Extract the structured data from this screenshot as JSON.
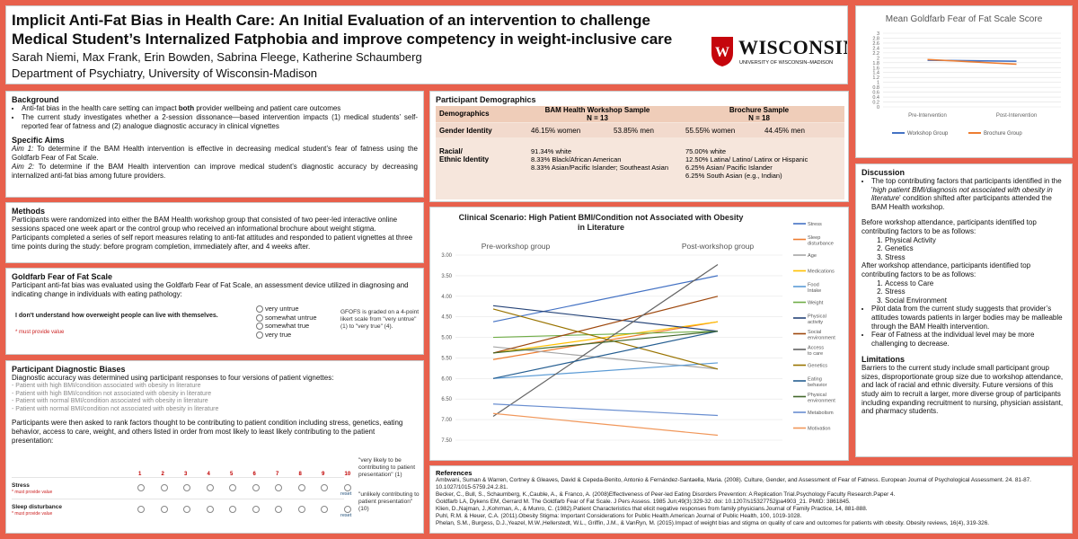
{
  "header": {
    "title_line1": "Implicit Anti-Fat Bias in Health Care: An Initial Evaluation of an intervention to challenge",
    "title_line2": "Medical Student’s Internalized Fatphobia and improve competency in weight-inclusive care",
    "authors": "Sarah Niemi, Max Frank, Erin Bowden, Sabrina Fleege, Katherine Schaumberg",
    "department": "Department of Psychiatry, University of Wisconsin-Madison",
    "logo_word": "WISCONSIN",
    "logo_sub": "UNIVERSITY OF WISCONSIN–MADISON"
  },
  "background": {
    "title": "Background",
    "bullet1_pre": "Anti-fat bias in the health care setting can impact ",
    "bullet1_bold": "both",
    "bullet1_post": " provider wellbeing and patient care outcomes",
    "bullet2": "The current study investigates whether a 2-session dissonance—based intervention impacts (1) medical students’ self-reported fear of fatness and (2) analogue diagnostic accuracy in clinical vignettes",
    "aims_title": "Specific Aims",
    "aim1_label": "Aim 1:",
    "aim1": " To determine if the BAM Health intervention is effective in decreasing medical student’s fear of fatness using the Goldfarb Fear of Fat Scale.",
    "aim2_label": "Aim 2:",
    "aim2": " To determine if the BAM Health intervention can improve medical student’s diagnostic accuracy by decreasing internalized anti-fat bias among future providers."
  },
  "methods": {
    "title": "Methods",
    "p1": "Participants were randomized into either the BAM Health workshop group that consisted of two peer-led interactive online sessions spaced one week apart or the control group who received an informational brochure about weight stigma.",
    "p2": "Participants completed a series of self report measures relating to anti-fat attitudes and responded to patient vignettes at three time points during the study: before program completion, immediately after, and 4 weeks after."
  },
  "goldfarb": {
    "title": "Goldfarb Fear of Fat Scale",
    "desc": "Participant anti-fat bias was evaluated using the Goldfarb Fear of Fat Scale, an assessment device utilized in diagnosing and indicating change in individuals with eating pathology:",
    "item": "I don't understand how overweight people can live with themselves.",
    "required": "* must provide value",
    "options": [
      "very untrue",
      "somewhat untrue",
      "somewhat true",
      "very true"
    ],
    "note": "GFOFS is graded on a 4-point likert scale from \"very untrue\" (1) to \"very true\" (4)."
  },
  "biases": {
    "title": "Participant Diagnostic Biases",
    "p1": "Diagnostic accuracy was determined using participant responses to four versions of patient vignettes:",
    "vignettes": [
      "- Patient with high BMI/condition associated with obesity in literature",
      "- Patient with high BMI/condition not associated with obesity in literature",
      "- Patient with normal BMI/condition associated with obesity in literature",
      "- Patient with normal BMI/condition not associated with obesity in literature"
    ],
    "p2": "Participants were then asked to rank factors thought to be contributing to patient condition including stress, genetics, eating behavior, access to care, weight, and others listed in order from most likely to least likely contributing to the patient presentation:",
    "scale_numbers": [
      "1",
      "2",
      "3",
      "4",
      "5",
      "6",
      "7",
      "8",
      "9",
      "10"
    ],
    "row1": "Stress",
    "row2": "Sleep disturbance",
    "required": "* must provide value",
    "reset": "reset",
    "note1": "\"very likely to be contributing to patient presentation\" (1)",
    "note2": "\"unlikely contributing to patient presentation\" (10)"
  },
  "demographics": {
    "title": "Participant Demographics",
    "col1": "Demographics",
    "col2_line1": "BAM Health Workshop Sample",
    "col2_line2": "N = 13",
    "col3_line1": "Brochure Sample",
    "col3_line2": "N = 18",
    "gender_label": "Gender Identity",
    "bam_women": "46.15% women",
    "bam_men": "53.85% men",
    "bro_women": "55.55% women",
    "bro_men": "44.45% men",
    "race_label1": "Racial/",
    "race_label2": "Ethnic Identity",
    "bam_race": [
      "91.34% white",
      "8.33% Black/African American",
      "8.33% Asian/Pacific Islander; Southeast Asian"
    ],
    "bro_race": [
      "75.00% white",
      "12.50% Latina/ Latino/ Latinx or Hispanic",
      "6.25% Asian/ Pacific Islander",
      "6.25% South Asian (e.g., Indian)"
    ]
  },
  "discussion": {
    "title": "Discussion",
    "b1_pre": "The top contributing factors that participants identified in the '",
    "b1_italic": "high patient BMI/diagnosis not associated with obesity in literature",
    "b1_post": "' condition shifted after participants attended the BAM Health workshop.",
    "before_intro": "Before workshop attendance, participants identified top contributing factors to be as follows:",
    "before_list": [
      "Physical Activity",
      "Genetics",
      "Stress"
    ],
    "after_intro": "After workshop attendance, participants identified top contributing factors to be as follows:",
    "after_list": [
      "Access to Care",
      "Stress",
      "Social Environment"
    ],
    "b2": "Pilot data from the current study suggests that provider’s attitudes towards patients in larger bodies may be malleable through the BAM Health intervention.",
    "b3": "Fear of Fatness at the individual level may be more challenging to decrease.",
    "limits_title": "Limitations",
    "limits": "Barriers to the current study include small participant group sizes, disproportionate group size due to workshop attendance, and lack of racial and ethnic diversity. Future versions of this study aim to recruit a larger, more diverse group of participants including expanding recruitment to nursing, physician assistant, and pharmacy students."
  },
  "references": {
    "title": "References",
    "items": [
      "Ambwani, Suman & Warren, Cortney & Gleaves, David & Cepeda-Benito, Antonio & Fernández-Santaella, Maria. (2008). Culture, Gender, and Assessment of Fear of Fatness. European Journal of Psychological Assessment. 24. 81-87. 10.1027/1015-5759.24.2.81.",
      "Becker, C., Bull, S., Schaumberg, K.,Cauble, A., & Franco, A. (2008)Effectiveness of Peer-led Eating Disorders Prevention: A Replication Trial.Psychology Faculty Research.Paper 4.",
      "Goldfarb LA, Dykens EM, Gerrard M. The Goldfarb Fear of Fat Scale. J Pers Assess. 1985 Jun;49(3):329-32. doi: 10.1207/s15327752jpa4903_21. PMID: 3861845.",
      "Klien, D.,Najman, J.,Kohrman, A., & Munro, C. (1982).Patient Characteristics that elicit negative responses from family physicians.Journal of Family Practice, 14, 881-888.",
      "Puhl, R.M. & Heuer, C.A. (2011).Obesity Stigma: Important Considerations for Public Health.American Journal of Public Health, 100, 1019-1028.",
      "Phelan, S.M., Burgess, D.J.,Yeazel, M.W.,Hellerstedt, W.L., Griffin, J.M., & VanRyn, M. (2015).Impact of weight bias and stigma on quality of care and outcomes for patients with obesity. Obesity reviews, 16(4), 319-326."
    ]
  },
  "chart_data": [
    {
      "type": "line",
      "title": "Mean Goldfarb Fear of Fat Scale Score",
      "categories": [
        "Pre-Intervention",
        "Post-Intervention"
      ],
      "ylim": [
        0,
        3
      ],
      "yticks": [
        "0",
        "0.2",
        "0.4",
        "0.6",
        "0.8",
        "1",
        "1.2",
        "1.4",
        "1.6",
        "1.8",
        "2",
        "2.2",
        "2.4",
        "2.6",
        "2.8",
        "3"
      ],
      "series": [
        {
          "name": "Workshop Group",
          "color": "#4472c4",
          "values": [
            1.9,
            1.86
          ]
        },
        {
          "name": "Brochure Group",
          "color": "#ed7d31",
          "values": [
            1.93,
            1.74
          ]
        }
      ],
      "legend": "bottom",
      "grid": true
    },
    {
      "type": "line",
      "title": "Clinical Scenario: High Patient BMI/Condition not Associated with Obesity in Literature",
      "categories": [
        "Pre-workshop group",
        "Post-workshop group"
      ],
      "ylim": [
        3.0,
        7.5
      ],
      "y_reversed": true,
      "yticks": [
        "3.00",
        "3.50",
        "4.00",
        "4.50",
        "5.00",
        "5.50",
        "6.00",
        "6.50",
        "7.00",
        "7.50"
      ],
      "series": [
        {
          "name": "Stress",
          "color": "#4472c4",
          "values": [
            4.62,
            3.5
          ]
        },
        {
          "name": "Sleep disturbance",
          "color": "#ed7d31",
          "values": [
            5.54,
            4.62
          ]
        },
        {
          "name": "Age",
          "color": "#a5a5a5",
          "values": [
            5.23,
            5.77
          ]
        },
        {
          "name": "Medications",
          "color": "#ffc000",
          "values": [
            5.38,
            4.62
          ]
        },
        {
          "name": "Food Intake",
          "color": "#5b9bd5",
          "values": [
            6.0,
            5.62
          ]
        },
        {
          "name": "Weight",
          "color": "#70ad47",
          "values": [
            5.0,
            4.85
          ]
        },
        {
          "name": "Physical activity",
          "color": "#264478",
          "values": [
            4.23,
            4.85
          ]
        },
        {
          "name": "Social environment",
          "color": "#9e480e",
          "values": [
            5.38,
            4.0
          ]
        },
        {
          "name": "Access to care",
          "color": "#636363",
          "values": [
            6.92,
            3.23
          ]
        },
        {
          "name": "Genetics",
          "color": "#997300",
          "values": [
            4.31,
            5.77
          ]
        },
        {
          "name": "Eating behavior",
          "color": "#255e91",
          "values": [
            6.0,
            4.85
          ]
        },
        {
          "name": "Physical environment",
          "color": "#43682b",
          "values": [
            5.38,
            4.85
          ]
        },
        {
          "name": "Metabolism",
          "color": "#698ed0",
          "values": [
            6.62,
            6.9
          ]
        },
        {
          "name": "Motivation",
          "color": "#f1975a",
          "values": [
            6.85,
            7.38
          ]
        }
      ],
      "legend": "right",
      "grid": true
    }
  ]
}
